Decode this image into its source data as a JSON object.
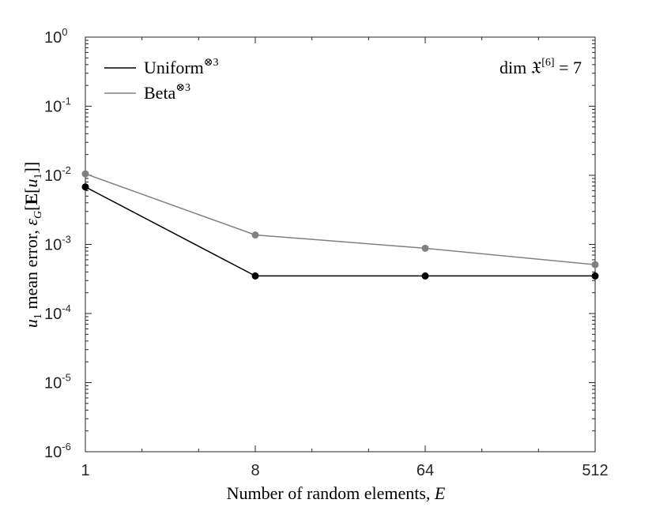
{
  "chart_data": {
    "type": "line",
    "x_scale": "log2",
    "y_scale": "log10",
    "x": [
      1,
      8,
      64,
      512
    ],
    "x_tick_labels": [
      "1",
      "8",
      "64",
      "512"
    ],
    "y_ticks": [
      {
        "base": "10",
        "exp": "0"
      },
      {
        "base": "10",
        "exp": "-1"
      },
      {
        "base": "10",
        "exp": "-2"
      },
      {
        "base": "10",
        "exp": "-3"
      },
      {
        "base": "10",
        "exp": "-4"
      },
      {
        "base": "10",
        "exp": "-5"
      },
      {
        "base": "10",
        "exp": "-6"
      }
    ],
    "xlim": [
      1,
      512
    ],
    "ylim": [
      1e-06,
      1
    ],
    "xlabel": {
      "text": "Number of random elements, ",
      "var": "E"
    },
    "ylabel": {
      "sym": "u",
      "sub": "1",
      "text": " mean error, ",
      "expr": "ε",
      "expr_sub": "G",
      "bracket": "[",
      "bold": "E",
      "inner_open": "[",
      "inner_sym": "u",
      "inner_sub": "1",
      "close": "]]"
    },
    "annotation": {
      "pre": "dim ",
      "sym": "𝔛",
      "sup": "[6]",
      "post": " = 7"
    },
    "legend_position": "top-left",
    "grid": false,
    "series": [
      {
        "name": "Uniform",
        "name_sup": "⊗3",
        "color": "#000000",
        "values": [
          0.0068,
          0.00035,
          0.00035,
          0.00035
        ]
      },
      {
        "name": "Beta",
        "name_sup": "⊗3",
        "color": "#808080",
        "values": [
          0.0105,
          0.00137,
          0.00088,
          0.00051
        ]
      }
    ]
  }
}
